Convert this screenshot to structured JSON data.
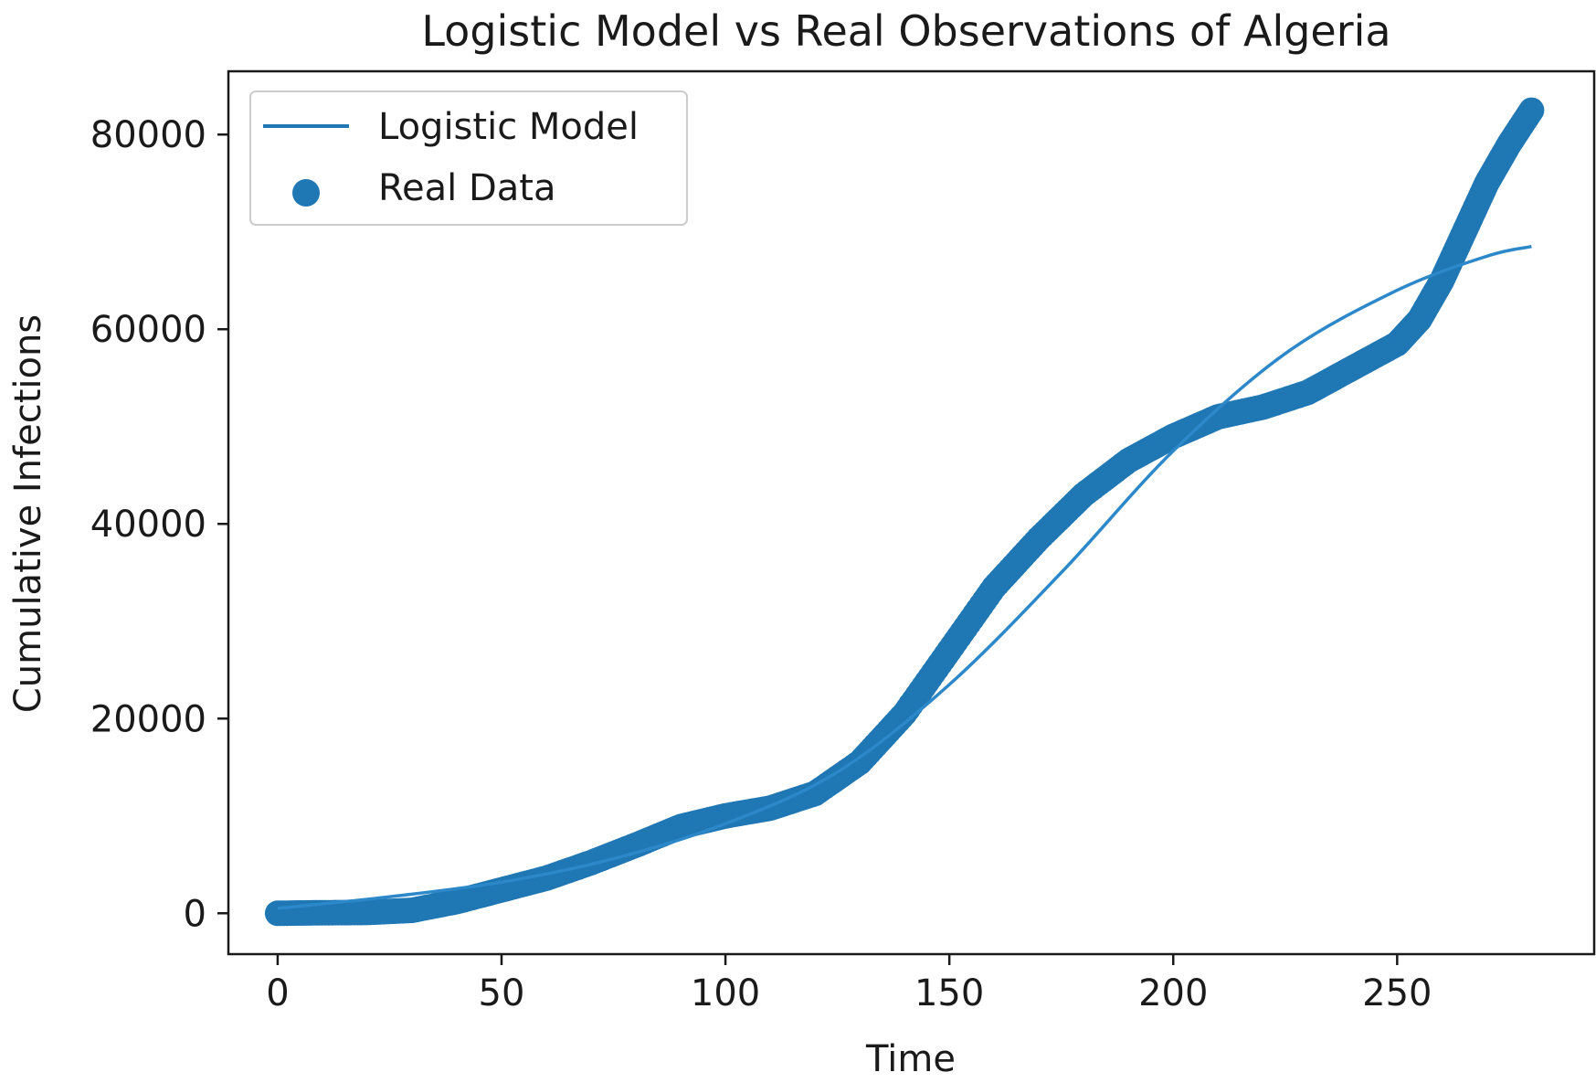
{
  "chart_data": {
    "type": "scatter",
    "title": "Logistic Model vs Real Observations of Algeria",
    "xlabel": "Time",
    "ylabel": "Cumulative Infections",
    "xlim": [
      -11,
      294
    ],
    "ylim": [
      -4200,
      86500
    ],
    "grid": false,
    "legend_position": "upper-left",
    "x_ticks": [
      0,
      50,
      100,
      150,
      200,
      250
    ],
    "x_tick_labels": [
      "0",
      "50",
      "100",
      "150",
      "200",
      "250"
    ],
    "y_ticks": [
      0,
      20000,
      40000,
      60000,
      80000
    ],
    "y_tick_labels": [
      "0",
      "20000",
      "40000",
      "60000",
      "80000"
    ],
    "color": "#1f77b4",
    "series": [
      {
        "name": "Logistic Model",
        "kind": "line",
        "points": [
          [
            0,
            500
          ],
          [
            25,
            1700
          ],
          [
            50,
            3200
          ],
          [
            75,
            5600
          ],
          [
            100,
            9200
          ],
          [
            125,
            14500
          ],
          [
            150,
            23500
          ],
          [
            175,
            35000
          ],
          [
            200,
            47500
          ],
          [
            225,
            57500
          ],
          [
            250,
            64000
          ],
          [
            270,
            67500
          ],
          [
            280,
            68500
          ]
        ]
      },
      {
        "name": "Real Data",
        "kind": "scatter",
        "points": [
          [
            0,
            0
          ],
          [
            10,
            50
          ],
          [
            20,
            80
          ],
          [
            30,
            300
          ],
          [
            40,
            1200
          ],
          [
            50,
            2400
          ],
          [
            60,
            3600
          ],
          [
            70,
            5200
          ],
          [
            80,
            7000
          ],
          [
            90,
            8900
          ],
          [
            100,
            10000
          ],
          [
            110,
            10800
          ],
          [
            120,
            12300
          ],
          [
            130,
            15500
          ],
          [
            140,
            20500
          ],
          [
            150,
            27000
          ],
          [
            160,
            33500
          ],
          [
            170,
            38500
          ],
          [
            180,
            43000
          ],
          [
            190,
            46500
          ],
          [
            200,
            49000
          ],
          [
            210,
            51000
          ],
          [
            220,
            52000
          ],
          [
            230,
            53500
          ],
          [
            240,
            56000
          ],
          [
            250,
            58500
          ],
          [
            255,
            61000
          ],
          [
            260,
            65000
          ],
          [
            265,
            70000
          ],
          [
            270,
            75000
          ],
          [
            275,
            79000
          ],
          [
            280,
            82500
          ]
        ]
      }
    ]
  }
}
